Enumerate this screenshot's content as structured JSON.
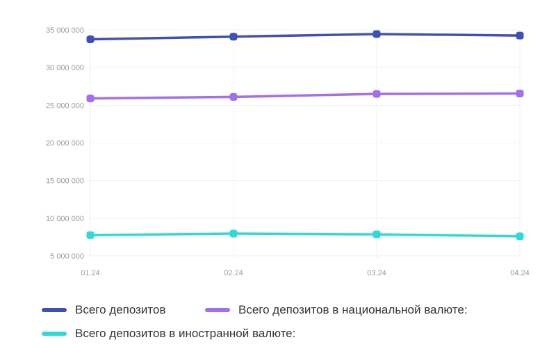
{
  "chart_data": {
    "type": "line",
    "categories": [
      "01.24",
      "02.24",
      "03.24",
      "04.24"
    ],
    "y_ticks": [
      "5 000 000",
      "10 000 000",
      "15 000 000",
      "20 000 000",
      "25 000 000",
      "30 000 000",
      "35 000 000"
    ],
    "ylim": [
      5000000,
      35000000
    ],
    "grid": true,
    "legend": "bottom",
    "series": [
      {
        "name": "Всего депозитов",
        "color": "#3f51b5",
        "values": [
          33750000,
          34100000,
          34450000,
          34250000
        ]
      },
      {
        "name": "Всего депозитов в национальной валюте:",
        "color": "#a36ef0",
        "values": [
          25900000,
          26100000,
          26500000,
          26550000
        ]
      },
      {
        "name": "Всего депозитов в иностранной валюте:",
        "color": "#2fdad6",
        "values": [
          7750000,
          7950000,
          7850000,
          7600000
        ]
      }
    ]
  }
}
